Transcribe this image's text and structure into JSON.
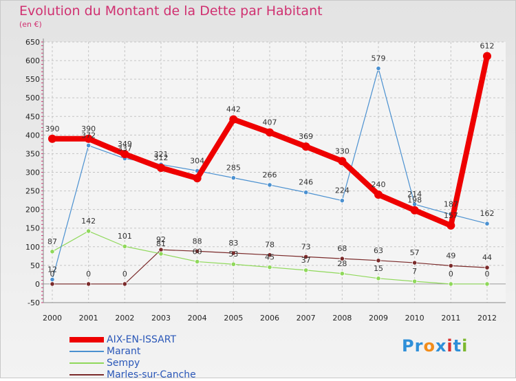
{
  "title": "Evolution du Montant de la Dette par Habitant",
  "unit_label": "(en €)",
  "colors": {
    "title": "#d03070",
    "legend_text": "#2a57b8",
    "grid": "#c4c4c4",
    "zero_line": "#999999"
  },
  "logo": {
    "text": "Proxiti",
    "letters": [
      "P",
      "r",
      "o",
      "x",
      "i",
      "t",
      "i"
    ],
    "colors": [
      "#2f8fd8",
      "#2f8fd8",
      "#f28c1a",
      "#2f8fd8",
      "#d93030",
      "#2f8fd8",
      "#7cb82f"
    ]
  },
  "chart_data": {
    "type": "line",
    "title": "Evolution du Montant de la Dette par Habitant",
    "ylabel": "(en €)",
    "xlabel": "",
    "x": [
      "2000",
      "2001",
      "2002",
      "2003",
      "2004",
      "2005",
      "2006",
      "2007",
      "2008",
      "2009",
      "2010",
      "2011",
      "2012"
    ],
    "ylim": [
      -50,
      650
    ],
    "yticks": [
      -50,
      0,
      50,
      100,
      150,
      200,
      250,
      300,
      350,
      400,
      450,
      500,
      550,
      600,
      650
    ],
    "grid": true,
    "legend_position": "bottom-left",
    "series": [
      {
        "name": "AIX-EN-ISSART",
        "color": "#ee0000",
        "values": [
          390,
          390,
          349,
          312,
          284,
          442,
          407,
          369,
          330,
          240,
          198,
          157,
          612
        ],
        "labels": [
          "390",
          "390",
          "349",
          "312",
          "",
          "442",
          "407",
          "369",
          "330",
          "240",
          "198",
          "157",
          "612"
        ]
      },
      {
        "name": "Marant",
        "color": "#4a90d0",
        "values": [
          12,
          372,
          337,
          321,
          304,
          285,
          266,
          246,
          224,
          579,
          214,
          187,
          162
        ],
        "labels": [
          "12",
          "372",
          "337",
          "321",
          "304",
          "285",
          "266",
          "246",
          "224",
          "579",
          "214",
          "187",
          "162"
        ]
      },
      {
        "name": "Sempy",
        "color": "#8fd85a",
        "values": [
          87,
          142,
          101,
          81,
          60,
          53,
          45,
          37,
          28,
          15,
          7,
          0,
          0
        ],
        "labels": [
          "87",
          "142",
          "101",
          "81",
          "60",
          "53",
          "45",
          "37",
          "28",
          "15",
          "7",
          "0",
          "0"
        ]
      },
      {
        "name": "Marles-sur-Canche",
        "color": "#7a2a2a",
        "values": [
          0,
          0,
          0,
          92,
          88,
          83,
          78,
          73,
          68,
          63,
          57,
          49,
          44
        ],
        "labels": [
          "0",
          "0",
          "0",
          "92",
          "88",
          "83",
          "78",
          "73",
          "68",
          "63",
          "57",
          "49",
          "44"
        ]
      }
    ]
  }
}
